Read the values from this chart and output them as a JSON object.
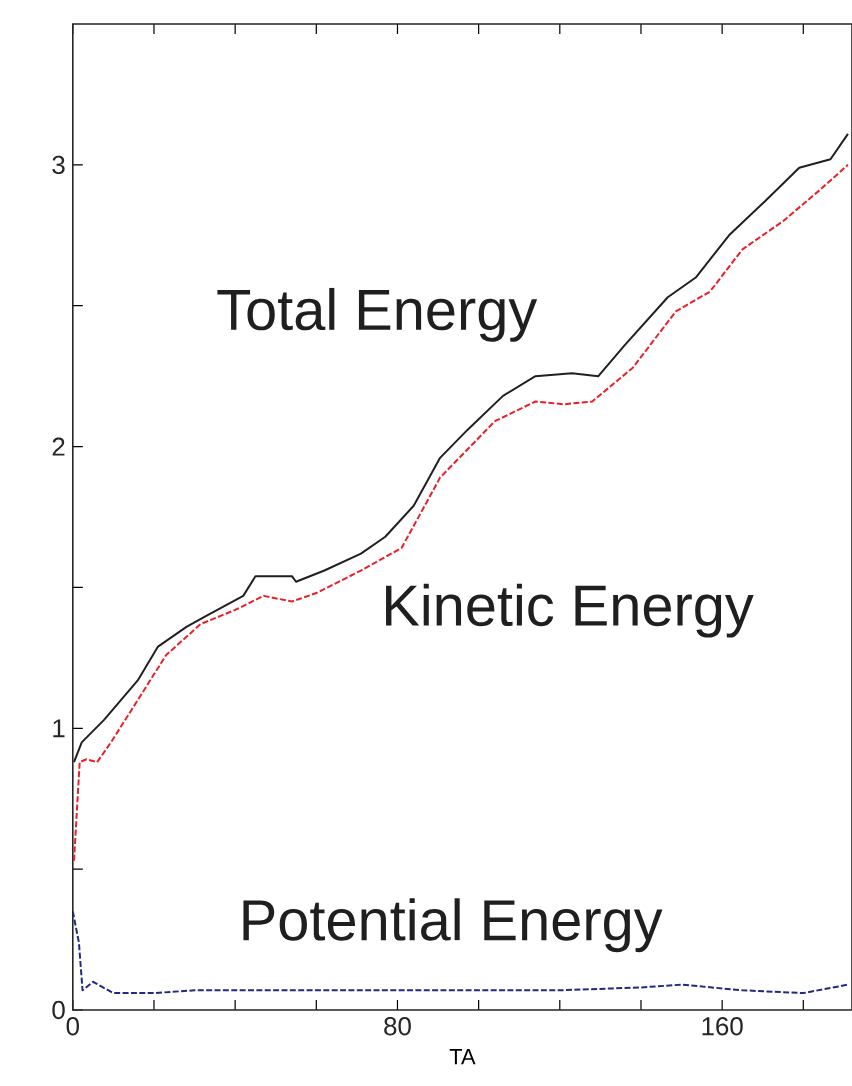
{
  "chart_data": {
    "type": "line",
    "xlabel": "TA",
    "xlim": [
      0,
      192
    ],
    "ylim": [
      0,
      3.5
    ],
    "xticks": [
      0,
      {
        "value": 20,
        "label": null
      },
      {
        "value": 40,
        "label": null
      },
      {
        "value": 60,
        "label": null
      },
      80,
      {
        "value": 100,
        "label": null
      },
      {
        "value": 120,
        "label": null
      },
      {
        "value": 140,
        "label": null
      },
      160,
      {
        "value": 180,
        "label": null
      }
    ],
    "yticks": [
      0,
      {
        "value": 0.5,
        "label": null
      },
      1,
      {
        "value": 1.5,
        "label": null
      },
      2,
      {
        "value": 2.5,
        "label": null
      },
      3
    ],
    "grid": false,
    "marker": "none",
    "series": [
      {
        "name": "Total Energy",
        "color": "#231f20",
        "line_style": "solid",
        "x": [
          0.3,
          2.2,
          7.7,
          16,
          21,
          28,
          33,
          42,
          45,
          54,
          55,
          62,
          71,
          77,
          84,
          90.5,
          97.3,
          106,
          114,
          123,
          129.5,
          136,
          146.6,
          153.5,
          161.7,
          170.5,
          179,
          186.7,
          191
        ],
        "values": [
          0.88,
          0.95,
          1.03,
          1.17,
          1.29,
          1.36,
          1.4,
          1.47,
          1.54,
          1.54,
          1.52,
          1.56,
          1.62,
          1.68,
          1.79,
          1.96,
          2.06,
          2.18,
          2.25,
          2.26,
          2.25,
          2.36,
          2.53,
          2.6,
          2.75,
          2.87,
          2.99,
          3.02,
          3.11
        ]
      },
      {
        "name": "Kinetic Energy",
        "color": "#e8202a",
        "line_style": "dashed",
        "x": [
          0.3,
          1.7,
          3.4,
          6,
          9.4,
          16,
          23,
          31.5,
          40,
          47,
          54,
          60,
          71,
          81,
          89,
          90.5,
          104,
          114,
          121,
          128,
          138,
          148.6,
          157,
          165,
          175,
          184,
          191
        ],
        "values": [
          0.53,
          0.88,
          0.89,
          0.88,
          0.95,
          1.1,
          1.26,
          1.37,
          1.42,
          1.47,
          1.45,
          1.48,
          1.56,
          1.64,
          1.85,
          1.89,
          2.09,
          2.16,
          2.15,
          2.16,
          2.28,
          2.48,
          2.55,
          2.7,
          2.8,
          2.91,
          3.0
        ]
      },
      {
        "name": "Potential Energy",
        "color": "#1f2a80",
        "line_style": "dashed",
        "x": [
          0,
          1.5,
          2.4,
          5,
          10,
          20,
          30,
          40,
          60,
          80,
          100,
          120,
          140,
          150,
          165,
          180,
          191
        ],
        "values": [
          0.35,
          0.24,
          0.07,
          0.1,
          0.06,
          0.06,
          0.07,
          0.07,
          0.07,
          0.07,
          0.07,
          0.07,
          0.08,
          0.09,
          0.07,
          0.06,
          0.09
        ]
      }
    ]
  }
}
